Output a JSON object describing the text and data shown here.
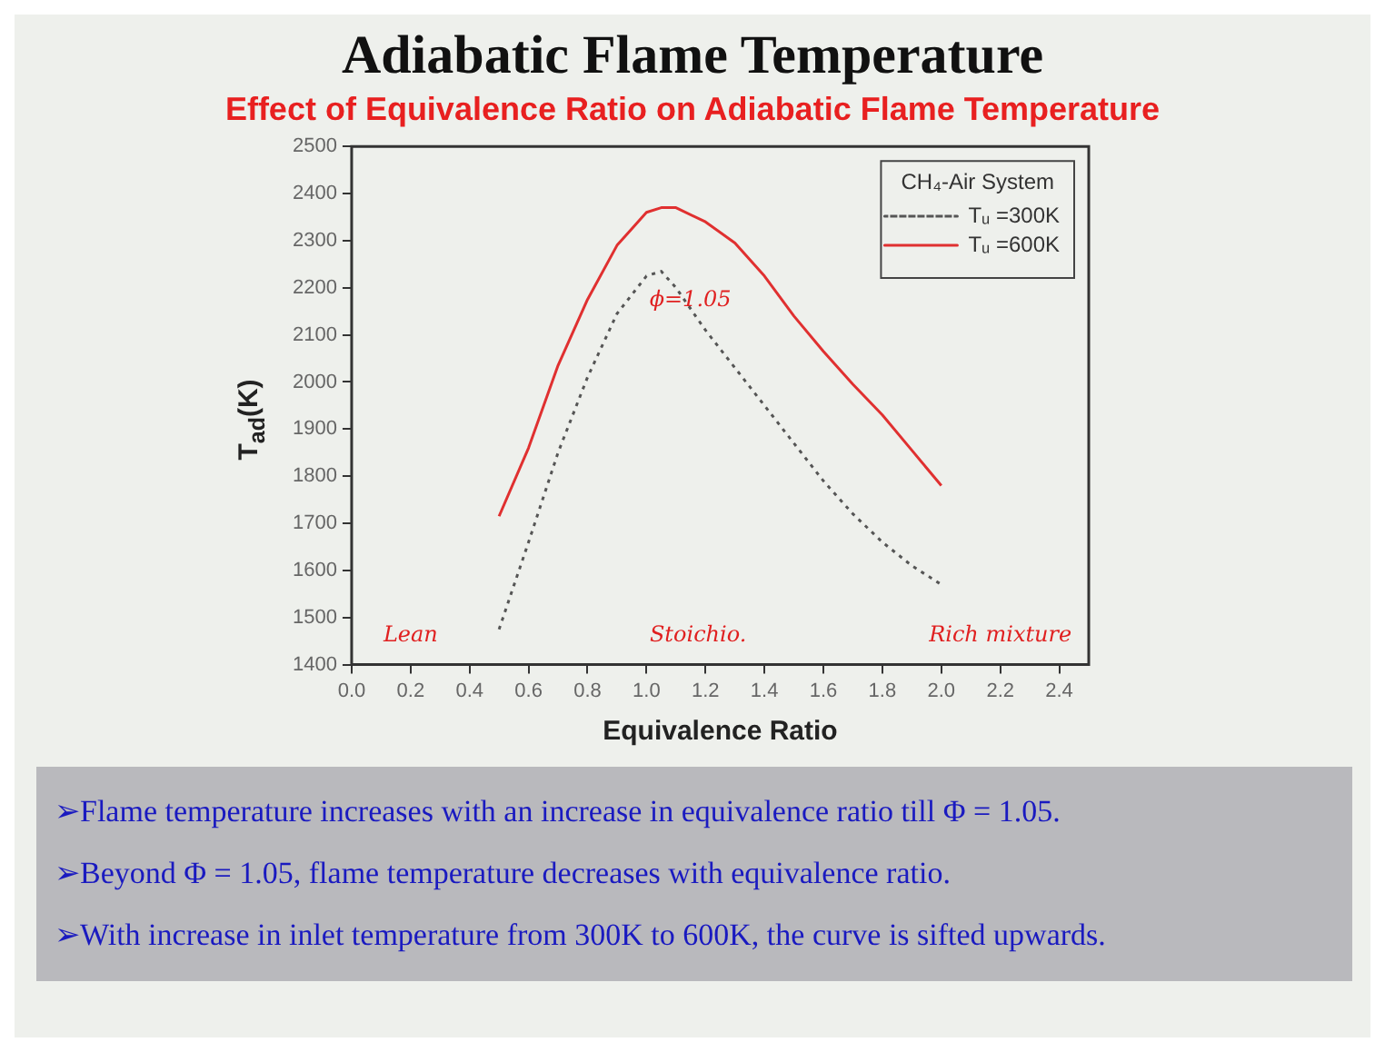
{
  "chart_data": {
    "type": "line",
    "title": "Adiabatic Flame Temperature",
    "subtitle": "Effect of Equivalence Ratio on Adiabatic Flame Temperature",
    "xlabel": "Equivalence Ratio",
    "ylabel": "T$_{ad}$(K)",
    "legend_title": "CH₄-Air System",
    "x": [
      0.5,
      0.6,
      0.7,
      0.8,
      0.9,
      1.0,
      1.05,
      1.1,
      1.2,
      1.3,
      1.4,
      1.5,
      1.6,
      1.7,
      1.8,
      1.9,
      2.0
    ],
    "series": [
      {
        "name": "Tᵤ =300K",
        "color": "#555555",
        "line_style": "dotted",
        "values": [
          1475,
          1660,
          1850,
          2010,
          2145,
          2225,
          2235,
          2200,
          2110,
          2030,
          1950,
          1870,
          1790,
          1720,
          1660,
          1610,
          1570
        ]
      },
      {
        "name": "Tᵤ =600K",
        "color": "#e03030",
        "line_style": "solid",
        "values": [
          1715,
          1860,
          2035,
          2175,
          2290,
          2360,
          2370,
          2370,
          2340,
          2295,
          2225,
          2140,
          2065,
          1995,
          1930,
          1855,
          1780
        ]
      }
    ],
    "xlim": [
      0,
      2.5
    ],
    "ylim": [
      1400,
      2500
    ],
    "xticks": [
      {
        "value": 0,
        "label": "0.0"
      },
      {
        "value": 0.2,
        "label": "0.2"
      },
      {
        "value": 0.4,
        "label": "0.4"
      },
      {
        "value": 0.6,
        "label": "0.6"
      },
      {
        "value": 0.8,
        "label": "0.8"
      },
      {
        "value": 1,
        "label": "1.0"
      },
      {
        "value": 1.2,
        "label": "1.2"
      },
      {
        "value": 1.4,
        "label": "1.4"
      },
      {
        "value": 1.6,
        "label": "1.6"
      },
      {
        "value": 1.8,
        "label": "1.8"
      },
      {
        "value": 2,
        "label": "2.0"
      },
      {
        "value": 2.2,
        "label": "2.2"
      },
      {
        "value": 2.4,
        "label": "2.4"
      }
    ],
    "yticks": [
      1400,
      1500,
      1600,
      1700,
      1800,
      1900,
      2000,
      2100,
      2200,
      2300,
      2400,
      2500
    ],
    "grid": false,
    "legend": "top right",
    "marker": "none",
    "annotations": [
      {
        "text": "ϕ=1.05",
        "x": 1.05,
        "y": 2235
      },
      "Lean",
      "Stoichio.",
      "Rich mixture",
      "➢Flame temperature increases with an increase in equivalence ratio till Φ = 1.05.",
      "➢Beyond Φ = 1.05, flame temperature decreases with equivalence ratio.",
      "➢With increase in inlet temperature from 300K to 600K, the curve is sifted upwards."
    ]
  }
}
